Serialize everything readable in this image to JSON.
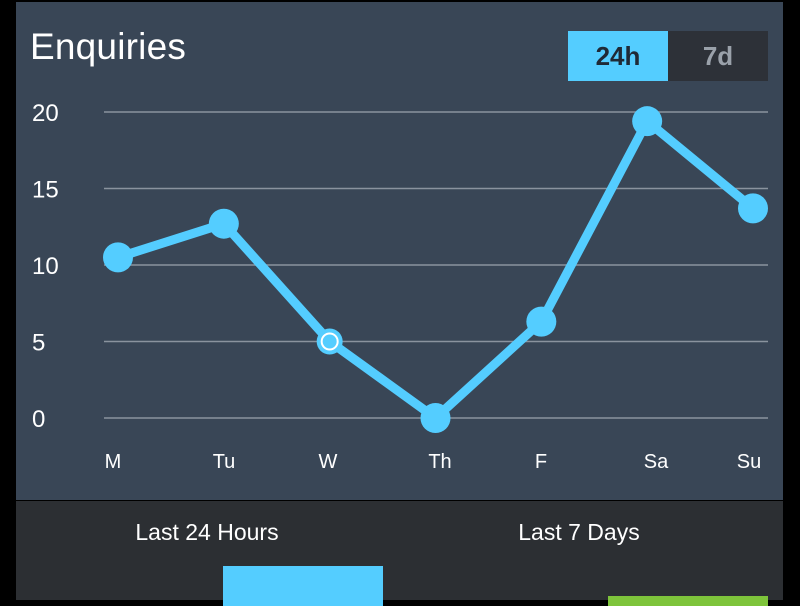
{
  "colors": {
    "panel_bg": "#394656",
    "bottom_bg": "#2c2f33",
    "accent": "#54cdff",
    "green_accent": "#7ec43b",
    "gridline": "#8a939e",
    "text": "#ffffff"
  },
  "header": {
    "title": "Enquiries"
  },
  "range_toggle": {
    "options": [
      {
        "label": "24h",
        "active": true
      },
      {
        "label": "7d",
        "active": false
      }
    ]
  },
  "chart_data": {
    "type": "line",
    "categories": [
      "M",
      "Tu",
      "W",
      "Th",
      "F",
      "Sa",
      "Su"
    ],
    "series": [
      {
        "values": [
          10.5,
          12.7,
          5.0,
          0.0,
          6.3,
          19.4,
          13.7
        ],
        "color": "#54cdff"
      }
    ],
    "highlighted_index": 2,
    "y_ticks": [
      "0",
      "5",
      "10",
      "15",
      "20"
    ],
    "ylim": [
      0,
      20
    ],
    "grid": true,
    "title": "Enquiries",
    "xlabel": "",
    "ylabel": ""
  },
  "summary": {
    "last_24h": {
      "label": "Last 24 Hours"
    },
    "last_7d": {
      "label": "Last 7 Days"
    }
  }
}
